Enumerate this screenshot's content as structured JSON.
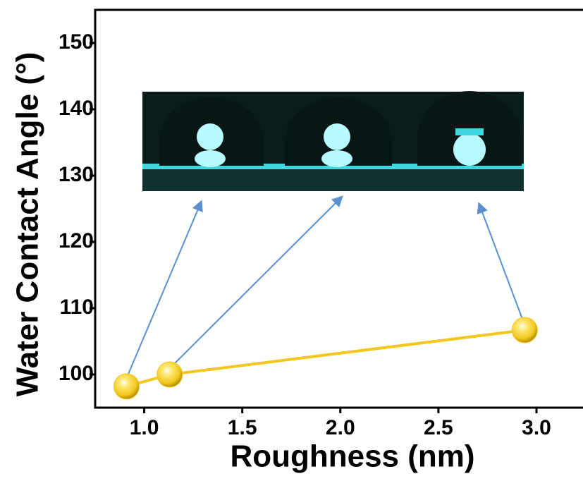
{
  "chart_data": {
    "type": "line",
    "xlabel": "Roughness (nm)",
    "ylabel": "Water Contact Angle (°)",
    "x": [
      0.91,
      1.13,
      2.94
    ],
    "series": [
      {
        "color": "#f2c81e",
        "values": [
          98.2,
          100,
          106.7
        ]
      }
    ],
    "xlim": [
      0.75,
      3.23
    ],
    "ylim": [
      95,
      155
    ],
    "xticks": [
      {
        "value": 1,
        "label": "1.0"
      },
      {
        "value": 1.5,
        "label": "1.5"
      },
      {
        "value": 2,
        "label": "2.0"
      },
      {
        "value": 2.5,
        "label": "2.5"
      },
      {
        "value": 3,
        "label": "3.0"
      }
    ],
    "yticks": [
      100,
      110,
      120,
      130,
      140,
      150
    ]
  }
}
